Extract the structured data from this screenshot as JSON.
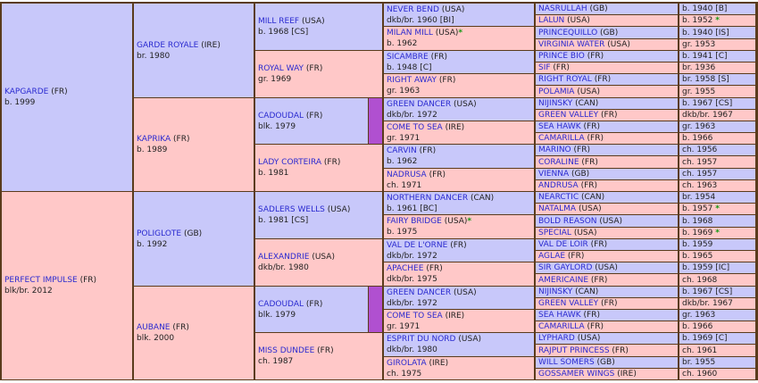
{
  "generations": [
    [
      {
        "name": "KAPGARDE",
        "country": "(FR)",
        "info": "b. 1999"
      },
      {
        "name": "PERFECT IMPULSE",
        "country": "(FR)",
        "info": "blk/br. 2012"
      }
    ],
    [
      {
        "name": "GARDE ROYALE",
        "country": "(IRE)",
        "info": "br. 1980"
      },
      {
        "name": "KAPRIKA",
        "country": "(FR)",
        "info": "b. 1989"
      },
      {
        "name": "POLIGLOTE",
        "country": "(GB)",
        "info": "b. 1992"
      },
      {
        "name": "AUBANE",
        "country": "(FR)",
        "info": "blk. 2000"
      }
    ],
    [
      {
        "name": "MILL REEF",
        "country": "(USA)",
        "info": "b. 1968 [CS]"
      },
      {
        "name": "ROYAL WAY",
        "country": "(FR)",
        "info": "gr. 1969"
      },
      {
        "name": "CADOUDAL",
        "country": "(FR)",
        "info": "blk. 1979",
        "highlight": "#b050d0"
      },
      {
        "name": "LADY CORTEIRA",
        "country": "(FR)",
        "info": "b. 1981"
      },
      {
        "name": "SADLERS WELLS",
        "country": "(USA)",
        "info": "b. 1981 [CS]"
      },
      {
        "name": "ALEXANDRIE",
        "country": "(USA)",
        "info": "dkb/br. 1980"
      },
      {
        "name": "CADOUDAL",
        "country": "(FR)",
        "info": "blk. 1979",
        "highlight": "#b050d0"
      },
      {
        "name": "MISS DUNDEE",
        "country": "(FR)",
        "info": "ch. 1987"
      }
    ],
    [
      {
        "name": "NEVER BEND",
        "country": "(USA)",
        "info": "dkb/br. 1960 [BI]"
      },
      {
        "name": "MILAN MILL",
        "country": "(USA)",
        "info": "b. 1962",
        "mark": "*"
      },
      {
        "name": "SICAMBRE",
        "country": "(FR)",
        "info": "b. 1948 [C]"
      },
      {
        "name": "RIGHT AWAY",
        "country": "(FR)",
        "info": "gr. 1963"
      },
      {
        "name": "GREEN DANCER",
        "country": "(USA)",
        "info": "dkb/br. 1972"
      },
      {
        "name": "COME TO SEA",
        "country": "(IRE)",
        "info": "gr. 1971"
      },
      {
        "name": "CARVIN",
        "country": "(FR)",
        "info": "b. 1962"
      },
      {
        "name": "NADRUSA",
        "country": "(FR)",
        "info": "ch. 1971"
      },
      {
        "name": "NORTHERN DANCER",
        "country": "(CAN)",
        "info": "b. 1961 [BC]"
      },
      {
        "name": "FAIRY BRIDGE",
        "country": "(USA)",
        "info": "b. 1975",
        "mark": "*"
      },
      {
        "name": "VAL DE L'ORNE",
        "country": "(FR)",
        "info": "dkb/br. 1972"
      },
      {
        "name": "APACHEE",
        "country": "(FR)",
        "info": "dkb/br. 1975"
      },
      {
        "name": "GREEN DANCER",
        "country": "(USA)",
        "info": "dkb/br. 1972"
      },
      {
        "name": "COME TO SEA",
        "country": "(IRE)",
        "info": "gr. 1971"
      },
      {
        "name": "ESPRIT DU NORD",
        "country": "(USA)",
        "info": "dkb/br. 1980"
      },
      {
        "name": "GIROLATA",
        "country": "(IRE)",
        "info": "ch. 1975"
      }
    ],
    [
      {
        "name": "NASRULLAH",
        "country": "(GB)",
        "info": "b. 1940 [B]"
      },
      {
        "name": "LALUN",
        "country": "(USA)",
        "info": "b. 1952",
        "mark": "*"
      },
      {
        "name": "PRINCEQUILLO",
        "country": "(GB)",
        "info": "b. 1940 [IS]"
      },
      {
        "name": "VIRGINIA WATER",
        "country": "(USA)",
        "info": "gr. 1953"
      },
      {
        "name": "PRINCE BIO",
        "country": "(FR)",
        "info": "b. 1941 [C]"
      },
      {
        "name": "SIF",
        "country": "(FR)",
        "info": "br. 1936"
      },
      {
        "name": "RIGHT ROYAL",
        "country": "(FR)",
        "info": "br. 1958 [S]"
      },
      {
        "name": "POLAMIA",
        "country": "(USA)",
        "info": "gr. 1955"
      },
      {
        "name": "NIJINSKY",
        "country": "(CAN)",
        "info": "b. 1967 [CS]"
      },
      {
        "name": "GREEN VALLEY",
        "country": "(FR)",
        "info": "dkb/br. 1967"
      },
      {
        "name": "SEA HAWK",
        "country": "(FR)",
        "info": "gr. 1963"
      },
      {
        "name": "CAMARILLA",
        "country": "(FR)",
        "info": "b. 1966"
      },
      {
        "name": "MARINO",
        "country": "(FR)",
        "info": "ch. 1956"
      },
      {
        "name": "CORALINE",
        "country": "(FR)",
        "info": "ch. 1957"
      },
      {
        "name": "VIENNA",
        "country": "(GB)",
        "info": "ch. 1957"
      },
      {
        "name": "ANDRUSA",
        "country": "(FR)",
        "info": "ch. 1963"
      },
      {
        "name": "NEARCTIC",
        "country": "(CAN)",
        "info": "br. 1954"
      },
      {
        "name": "NATALMA",
        "country": "(USA)",
        "info": "b. 1957",
        "mark": "*"
      },
      {
        "name": "BOLD REASON",
        "country": "(USA)",
        "info": "b. 1968"
      },
      {
        "name": "SPECIAL",
        "country": "(USA)",
        "info": "b. 1969",
        "mark": "*"
      },
      {
        "name": "VAL DE LOIR",
        "country": "(FR)",
        "info": "b. 1959"
      },
      {
        "name": "AGLAE",
        "country": "(FR)",
        "info": "b. 1965"
      },
      {
        "name": "SIR GAYLORD",
        "country": "(USA)",
        "info": "b. 1959 [IC]"
      },
      {
        "name": "AMERICAINE",
        "country": "(FR)",
        "info": "ch. 1968"
      },
      {
        "name": "NIJINSKY",
        "country": "(CAN)",
        "info": "b. 1967 [CS]"
      },
      {
        "name": "GREEN VALLEY",
        "country": "(FR)",
        "info": "dkb/br. 1967"
      },
      {
        "name": "SEA HAWK",
        "country": "(FR)",
        "info": "gr. 1963"
      },
      {
        "name": "CAMARILLA",
        "country": "(FR)",
        "info": "b. 1966"
      },
      {
        "name": "LYPHARD",
        "country": "(USA)",
        "info": "b. 1969 [C]"
      },
      {
        "name": "RAJPUT PRINCESS",
        "country": "(FR)",
        "info": "ch. 1961"
      },
      {
        "name": "WILL SOMERS",
        "country": "(GB)",
        "info": "br. 1955"
      },
      {
        "name": "GOSSAMER WINGS",
        "country": "(IRE)",
        "info": "ch. 1960"
      }
    ]
  ]
}
